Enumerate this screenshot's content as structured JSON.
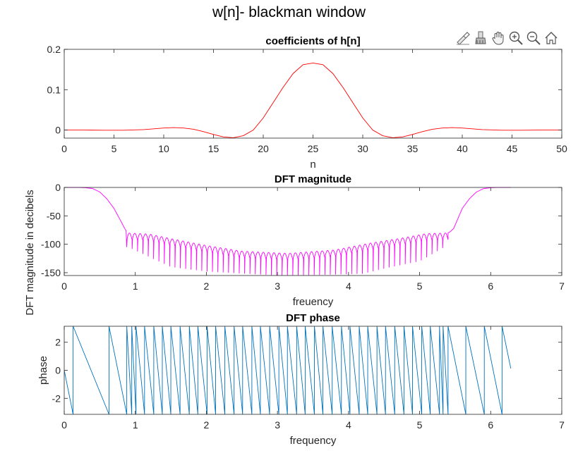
{
  "figure": {
    "suptitle": "w[n]- blackman window"
  },
  "toolbar": {
    "items": [
      {
        "name": "data-cursor-icon"
      },
      {
        "name": "brush-icon"
      },
      {
        "name": "pan-hand-icon"
      },
      {
        "name": "zoom-in-icon"
      },
      {
        "name": "zoom-out-icon"
      },
      {
        "name": "home-icon"
      }
    ]
  },
  "chart_data": [
    {
      "type": "line",
      "title": "coefficients of h[n]",
      "xlabel": "n",
      "ylabel": "",
      "xlim": [
        0,
        50
      ],
      "ylim": [
        -0.02,
        0.2
      ],
      "xticks": [
        0,
        5,
        10,
        15,
        20,
        25,
        30,
        35,
        40,
        45,
        50
      ],
      "yticks": [
        0,
        0.1,
        0.2
      ],
      "ytick_labels": [
        "0",
        "0.1",
        "0.2"
      ],
      "color": "#ff0000",
      "x": [
        0,
        2,
        4,
        6,
        8,
        9,
        10,
        11,
        12,
        13,
        14,
        15,
        16,
        17,
        18,
        19,
        20,
        21,
        22,
        23,
        24,
        25,
        26,
        27,
        28,
        29,
        30,
        31,
        32,
        33,
        34,
        35,
        36,
        37,
        38,
        39,
        40,
        41,
        42,
        44,
        46,
        48,
        50
      ],
      "y": [
        0,
        0,
        -0.0005,
        -0.0005,
        0.001,
        0.003,
        0.005,
        0.006,
        0.005,
        0.002,
        -0.004,
        -0.011,
        -0.017,
        -0.019,
        -0.014,
        0.0,
        0.03,
        0.068,
        0.106,
        0.14,
        0.162,
        0.166,
        0.162,
        0.14,
        0.106,
        0.068,
        0.03,
        0.0,
        -0.014,
        -0.019,
        -0.017,
        -0.011,
        -0.004,
        0.002,
        0.005,
        0.006,
        0.005,
        0.003,
        0.001,
        -0.0005,
        -0.0005,
        0,
        0
      ]
    },
    {
      "type": "line",
      "title": "DFT magnitude",
      "xlabel": "freuency",
      "ylabel": "DFT magnitude in decibels",
      "xlim": [
        0,
        7
      ],
      "ylim": [
        -155,
        0
      ],
      "xticks": [
        0,
        1,
        2,
        3,
        4,
        5,
        6,
        7
      ],
      "yticks": [
        -150,
        -100,
        -50,
        0
      ],
      "color": "#ff00ff",
      "x": [
        0,
        0.2,
        0.3,
        0.4,
        0.5,
        0.6,
        0.7,
        0.8,
        0.85,
        0.88,
        0.9,
        1.0,
        1.2,
        1.5,
        2.0,
        2.5,
        3.0,
        3.14,
        3.3,
        3.5,
        4.0,
        4.5,
        5.0,
        5.3,
        5.4,
        5.43,
        5.48,
        5.6,
        5.7,
        5.8,
        5.9,
        6.0,
        6.1,
        6.283
      ],
      "y": [
        0,
        0,
        -0.5,
        -2,
        -8,
        -20,
        -37,
        -60,
        -72,
        -78,
        -80,
        -77,
        -82,
        -90,
        -102,
        -112,
        -115,
        -116,
        -115,
        -112,
        -102,
        -90,
        -82,
        -77,
        -80,
        -78,
        -72,
        -37,
        -20,
        -8,
        -2,
        -0.5,
        0,
        0
      ],
      "notch_base": [
        {
          "x": 0.88,
          "y": -80
        },
        {
          "x": 1.2,
          "y": -82
        },
        {
          "x": 1.5,
          "y": -90
        },
        {
          "x": 2.0,
          "y": -102
        },
        {
          "x": 2.5,
          "y": -112
        },
        {
          "x": 3.14,
          "y": -116
        },
        {
          "x": 3.8,
          "y": -110
        },
        {
          "x": 4.3,
          "y": -98
        },
        {
          "x": 4.8,
          "y": -88
        },
        {
          "x": 5.1,
          "y": -81
        },
        {
          "x": 5.4,
          "y": -80
        }
      ],
      "notch_depth": [
        {
          "x": 0.9,
          "y": -105
        },
        {
          "x": 1.5,
          "y": -140
        },
        {
          "x": 2.0,
          "y": -148
        },
        {
          "x": 3.0,
          "y": -155
        },
        {
          "x": 3.3,
          "y": -155
        },
        {
          "x": 4.2,
          "y": -152
        },
        {
          "x": 4.6,
          "y": -140
        },
        {
          "x": 5.0,
          "y": -130
        },
        {
          "x": 5.35,
          "y": -105
        }
      ],
      "notch_count": 60
    },
    {
      "type": "line",
      "title": "DFT phase",
      "xlabel": "frequency",
      "ylabel": "phase",
      "xlim": [
        0,
        7
      ],
      "ylim": [
        -3.14159,
        3.14159
      ],
      "xticks": [
        0,
        1,
        2,
        3,
        4,
        5,
        6,
        7
      ],
      "yticks": [
        -2,
        0,
        2
      ],
      "color": "#0072bd",
      "wrap_points": [
        0.125,
        0.63,
        0.88,
        0.95,
        1.01,
        1.13,
        1.26,
        1.38,
        1.5,
        1.63,
        1.76,
        1.88,
        2.01,
        2.13,
        2.26,
        2.39,
        2.51,
        2.64,
        2.76,
        2.89,
        3.02,
        3.14,
        3.27,
        3.39,
        3.52,
        3.64,
        3.77,
        3.9,
        4.02,
        4.15,
        4.27,
        4.4,
        4.52,
        4.65,
        4.78,
        4.9,
        5.03,
        5.15,
        5.28,
        5.33,
        5.4,
        5.65,
        5.91,
        6.16
      ],
      "slope": -24.0,
      "end": {
        "x": 6.283,
        "y": 0.13
      }
    }
  ]
}
